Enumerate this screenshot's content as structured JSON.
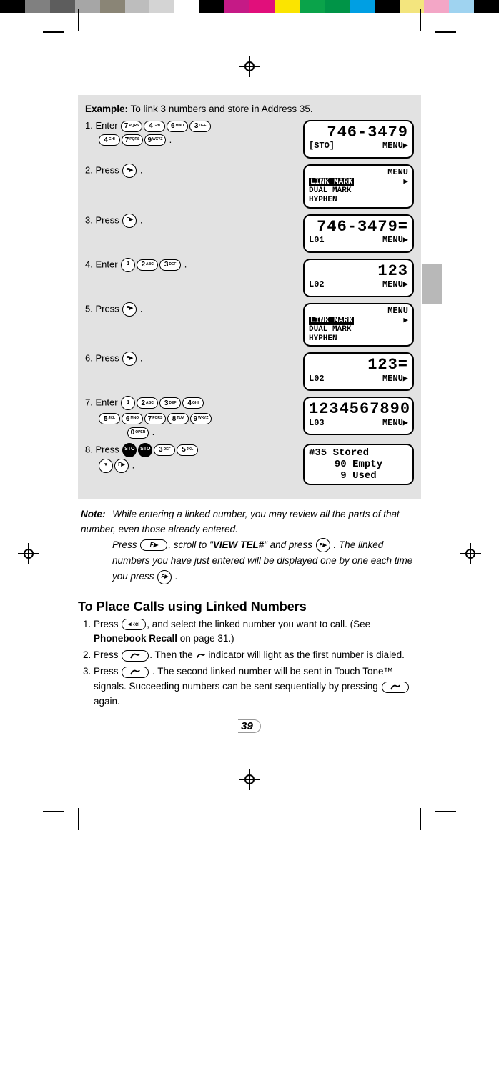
{
  "color_bar": [
    "#000000",
    "#808080",
    "#5d5d5d",
    "#a6a6a6",
    "#8a8576",
    "#bdbdbd",
    "#d4d4d4",
    "#ffffff",
    "#000000",
    "#c51a86",
    "#e10f7b",
    "#fbe400",
    "#0aa34a",
    "#009447",
    "#009fe3",
    "#000000",
    "#f3e57e",
    "#f3a6c6",
    "#9fd3f0",
    "#000000"
  ],
  "example": {
    "title_bold": "Example:",
    "title_rest": " To link 3 numbers and store in Address 35.",
    "steps": [
      {
        "n": "1.",
        "verb": "Enter",
        "keys": [
          [
            "7",
            "PQRS"
          ],
          [
            "4",
            "GHI"
          ],
          [
            "6",
            "MNO"
          ],
          [
            "3",
            "DEF"
          ]
        ],
        "keys2": [
          [
            "4",
            "GHI"
          ],
          [
            "7",
            "PQRS"
          ],
          [
            "9",
            "WXYZ"
          ]
        ],
        "trail": " .",
        "lcd": {
          "type": "num",
          "main": "746-3479",
          "bl": "[STO]",
          "br": "MENU▶"
        }
      },
      {
        "n": "2.",
        "verb": "Press",
        "keys": [
          [
            "F▶",
            ""
          ]
        ],
        "trail": " .",
        "lcd": {
          "type": "menu",
          "title": "MENU",
          "items": [
            "LINK MARK",
            "DUAL MARK",
            "HYPHEN"
          ],
          "hl": 0,
          "arrow": "▶"
        }
      },
      {
        "n": "3.",
        "verb": "Press",
        "keys": [
          [
            "F▶",
            ""
          ]
        ],
        "trail": " .",
        "lcd": {
          "type": "num",
          "main": "746-3479=",
          "bl": "L01",
          "br": "MENU▶"
        }
      },
      {
        "n": "4.",
        "verb": "Enter",
        "keys": [
          [
            "1",
            ""
          ],
          [
            "2",
            "ABC"
          ],
          [
            "3",
            "DEF"
          ]
        ],
        "trail": " .",
        "lcd": {
          "type": "num",
          "main": "123",
          "bl": "L02",
          "br": "MENU▶"
        }
      },
      {
        "n": "5.",
        "verb": "Press",
        "keys": [
          [
            "F▶",
            ""
          ]
        ],
        "trail": " .",
        "lcd": {
          "type": "menu",
          "title": "MENU",
          "items": [
            "LINK MARK",
            "DUAL MARK",
            "HYPHEN"
          ],
          "hl": 0,
          "arrow": "▶"
        }
      },
      {
        "n": "6.",
        "verb": "Press",
        "keys": [
          [
            "F▶",
            ""
          ]
        ],
        "trail": " .",
        "lcd": {
          "type": "num",
          "main": "123=",
          "bl": "L02",
          "br": "MENU▶"
        }
      },
      {
        "n": "7.",
        "verb": "Enter",
        "keys": [
          [
            "1",
            ""
          ],
          [
            "2",
            "ABC"
          ],
          [
            "3",
            "DEF"
          ],
          [
            "4",
            "GHI"
          ]
        ],
        "keys2": [
          [
            "5",
            "JKL"
          ],
          [
            "6",
            "MNO"
          ],
          [
            "7",
            "PQRS"
          ],
          [
            "8",
            "TUV"
          ],
          [
            "9",
            "WXYZ"
          ]
        ],
        "keys3": [
          [
            "0",
            "OPER"
          ]
        ],
        "trail": " .",
        "lcd": {
          "type": "num",
          "main": "1234567890",
          "bl": "L03",
          "br": "MENU▶"
        }
      },
      {
        "n": "8.",
        "verb": "Press",
        "keys": [
          [
            "STO",
            "",
            true
          ],
          [
            "STO",
            "",
            true
          ],
          [
            "3",
            "DEF"
          ],
          [
            "5",
            "JKL"
          ]
        ],
        "keys2": [
          [
            "▾",
            ""
          ],
          [
            "F▶",
            ""
          ]
        ],
        "trail": " .",
        "lcd": {
          "type": "stored",
          "lines": [
            "#35    Stored",
            "90 Empty",
            "9 Used"
          ]
        }
      }
    ]
  },
  "note": {
    "label": "Note:",
    "lines": [
      "While entering a linked number, you may review all the parts of that number, even those already entered.",
      "Press ",
      ", scroll to \"",
      "VIEW TEL#",
      "\" and press ",
      " . The linked numbers you have just entered will be displayed one by one each time you press ",
      " ."
    ],
    "key1": "F▶",
    "key2": "F▶",
    "key3": "F▶"
  },
  "section2": {
    "heading": "To Place Calls using Linked Numbers",
    "items": [
      {
        "n": "1.",
        "pre": "Press ",
        "key": "◂Rcl",
        "post": ", and select the linked number you want to call. (See ",
        "bold": "Phonebook Recall",
        "post2": " on page 31.)"
      },
      {
        "n": "2.",
        "pre": "Press ",
        "keysvg": "send",
        "mid": ". Then the ",
        "iconsvg": "phone",
        "post": " indicator will light as the first number is dialed."
      },
      {
        "n": "3.",
        "pre": "Press ",
        "keysvg": "send",
        "mid": " . The second linked number will be sent in Touch Tone™ signals. Succeeding numbers can be  sent sequentially by pressing ",
        "keysvg2": "send",
        "post": " again."
      }
    ]
  },
  "page_number": "39"
}
